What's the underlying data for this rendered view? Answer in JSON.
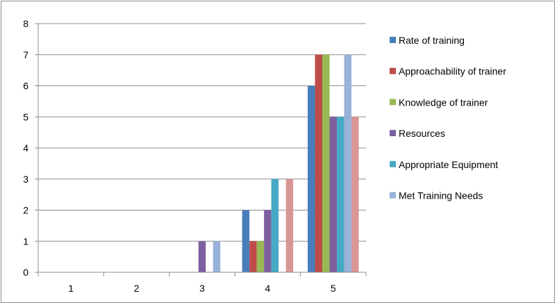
{
  "chart_data": {
    "type": "bar",
    "title": "",
    "xlabel": "",
    "ylabel": "",
    "categories": [
      "1",
      "2",
      "3",
      "4",
      "5"
    ],
    "ylim": [
      0,
      8
    ],
    "yticks": [
      0,
      1,
      2,
      3,
      4,
      5,
      6,
      7,
      8
    ],
    "grid": "horizontal",
    "legend_position": "right",
    "series": [
      {
        "name": "Rate of training",
        "color": "#4a7ebb",
        "values": [
          0,
          0,
          0,
          2,
          6
        ]
      },
      {
        "name": "Approachability of trainer",
        "color": "#be4b48",
        "values": [
          0,
          0,
          0,
          1,
          7
        ]
      },
      {
        "name": "Knowledge of trainer",
        "color": "#98b954",
        "values": [
          0,
          0,
          0,
          1,
          7
        ]
      },
      {
        "name": "Resources",
        "color": "#7d60a0",
        "values": [
          0,
          0,
          1,
          2,
          5
        ]
      },
      {
        "name": "Appropriate Equipment",
        "color": "#46aac5",
        "values": [
          0,
          0,
          0,
          3,
          5
        ]
      },
      {
        "name": "Met Training Needs",
        "color": "#98b2d9",
        "values": [
          0,
          0,
          1,
          0,
          7
        ]
      },
      {
        "name": "",
        "color": "#d99694",
        "values": [
          0,
          0,
          0,
          3,
          5
        ]
      }
    ]
  }
}
